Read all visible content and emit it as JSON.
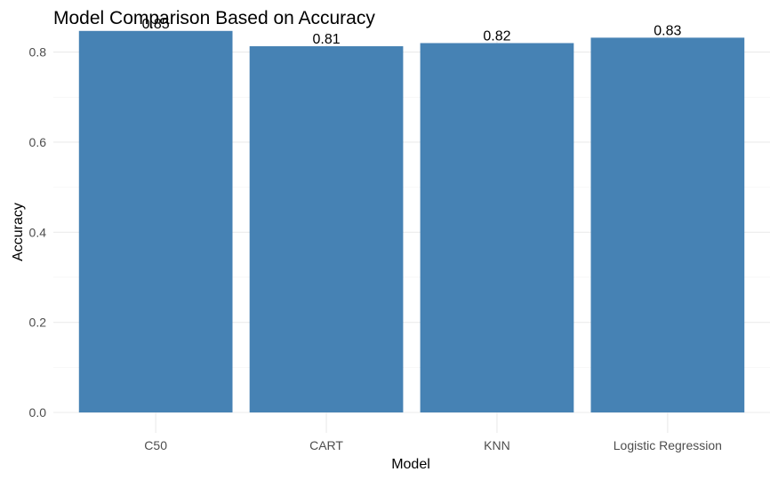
{
  "chart_data": {
    "type": "bar",
    "title": "Model Comparison Based on Accuracy",
    "xlabel": "Model",
    "ylabel": "Accuracy",
    "categories": [
      "C50",
      "CART",
      "KNN",
      "Logistic Regression"
    ],
    "values": [
      0.847,
      0.813,
      0.82,
      0.832
    ],
    "value_labels": [
      "0.85",
      "0.81",
      "0.82",
      "0.83"
    ],
    "ylim": [
      0,
      0.89
    ],
    "yticks": [
      0.0,
      0.2,
      0.4,
      0.6,
      0.8
    ],
    "ytick_labels": [
      "0.0",
      "0.2",
      "0.4",
      "0.6",
      "0.8"
    ],
    "grid": true,
    "legend": "none",
    "bar_color": "#4682b4"
  }
}
